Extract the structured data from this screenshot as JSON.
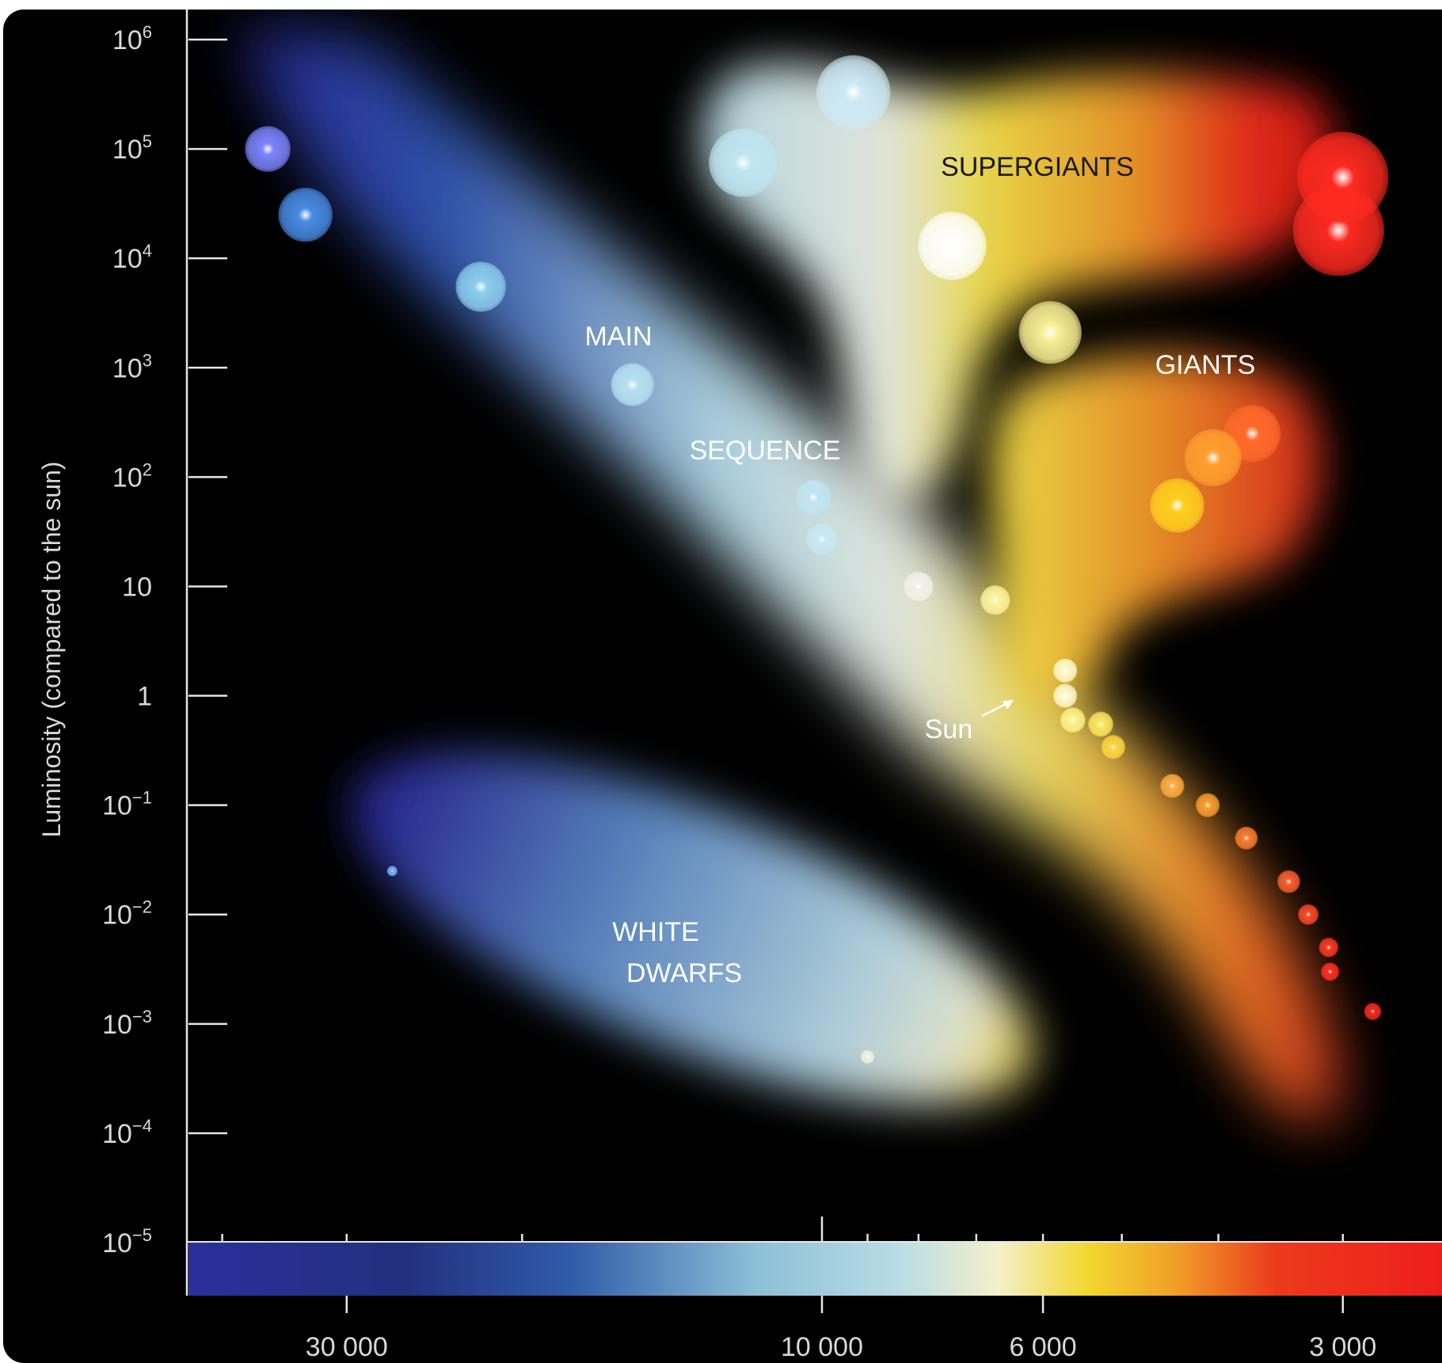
{
  "chart_data": {
    "type": "scatter",
    "title": "",
    "ylabel": "Luminosity (compared to the sun)",
    "xlabel": "",
    "y_scale": "log",
    "x_scale": "log",
    "x_reversed": true,
    "ylim": [
      1e-05,
      1000000
    ],
    "xlim": [
      2000,
      50000
    ],
    "y_ticks": [
      {
        "value": 1000000,
        "base": "10",
        "exp": "6"
      },
      {
        "value": 100000,
        "base": "10",
        "exp": "5"
      },
      {
        "value": 10000,
        "base": "10",
        "exp": "4"
      },
      {
        "value": 1000,
        "base": "10",
        "exp": "3"
      },
      {
        "value": 100,
        "base": "10",
        "exp": "2"
      },
      {
        "value": 10,
        "base": "10",
        "exp": ""
      },
      {
        "value": 1,
        "base": "1",
        "exp": ""
      },
      {
        "value": 0.1,
        "base": "10",
        "exp": "−1"
      },
      {
        "value": 0.01,
        "base": "10",
        "exp": "−2"
      },
      {
        "value": 0.001,
        "base": "10",
        "exp": "−3"
      },
      {
        "value": 0.0001,
        "base": "10",
        "exp": "−4"
      },
      {
        "value": 1e-05,
        "base": "10",
        "exp": "−5"
      }
    ],
    "x_ticks_labeled": [
      {
        "value": 30000,
        "label": "30 000"
      },
      {
        "value": 10000,
        "label": "10 000"
      },
      {
        "value": 6000,
        "label": "6 000"
      },
      {
        "value": 3000,
        "label": "3 000"
      }
    ],
    "x_ticks_minor": [
      40000,
      20000,
      9000,
      8000,
      7000,
      5000,
      4000
    ],
    "region_labels": [
      {
        "text": "SUPERGIANTS",
        "color": "#1a1a1a"
      },
      {
        "text": "GIANTS",
        "color": "#ffffff"
      },
      {
        "text": "MAIN",
        "color": "#ffffff"
      },
      {
        "text": "SEQUENCE",
        "color": "#ffffff"
      },
      {
        "text": "WHITE",
        "color": "#ffffff"
      },
      {
        "text": "DWARFS",
        "color": "#ffffff"
      }
    ],
    "sun_label": "Sun",
    "series": [
      {
        "class": "supergiants",
        "points": [
          {
            "t": 36000,
            "l": 100000,
            "r": 0.8,
            "color": "#7f86ff"
          },
          {
            "t": 12000,
            "l": 75000,
            "r": 1.2,
            "color": "#bfe6f2"
          },
          {
            "t": 9300,
            "l": 330000,
            "r": 1.3,
            "color": "#cdeaf5"
          },
          {
            "t": 7400,
            "l": 13000,
            "r": 1.2,
            "color": "#ffffff"
          },
          {
            "t": 5900,
            "l": 2100,
            "r": 1.1,
            "color": "#fff59a"
          },
          {
            "t": 3030,
            "l": 18000,
            "r": 1.6,
            "color": "#ff2a20"
          },
          {
            "t": 3000,
            "l": 55000,
            "r": 1.6,
            "color": "#ff2a20"
          }
        ]
      },
      {
        "class": "giants",
        "points": [
          {
            "t": 3700,
            "l": 250,
            "r": 1.0,
            "color": "#ff6a2a"
          },
          {
            "t": 4050,
            "l": 150,
            "r": 1.0,
            "color": "#ffa030"
          },
          {
            "t": 4400,
            "l": 55,
            "r": 0.95,
            "color": "#ffd020"
          }
        ]
      },
      {
        "class": "main_sequence",
        "points": [
          {
            "t": 33000,
            "l": 25000,
            "r": 0.95,
            "color": "#4a8ee8"
          },
          {
            "t": 22000,
            "l": 5500,
            "r": 0.88,
            "color": "#8ed0ee"
          },
          {
            "t": 15500,
            "l": 700,
            "r": 0.75,
            "color": "#b8e2f2"
          },
          {
            "t": 10200,
            "l": 65,
            "r": 0.62,
            "color": "#c0e5f2"
          },
          {
            "t": 10000,
            "l": 27,
            "r": 0.55,
            "color": "#c8e8f2"
          },
          {
            "t": 8000,
            "l": 10,
            "r": 0.52,
            "color": "#f2f2ea"
          },
          {
            "t": 6700,
            "l": 7.5,
            "r": 0.52,
            "color": "#fff5a0"
          },
          {
            "t": 5700,
            "l": 1.7,
            "r": 0.42,
            "color": "#fffbd0"
          },
          {
            "t": 5700,
            "l": 1.0,
            "r": 0.42,
            "color": "#fffbd0"
          },
          {
            "t": 5600,
            "l": 0.6,
            "r": 0.44,
            "color": "#fff38a"
          },
          {
            "t": 5250,
            "l": 0.55,
            "r": 0.44,
            "color": "#ffe860"
          },
          {
            "t": 5100,
            "l": 0.34,
            "r": 0.42,
            "color": "#ffd840"
          },
          {
            "t": 4450,
            "l": 0.15,
            "r": 0.42,
            "color": "#ffb040"
          },
          {
            "t": 4100,
            "l": 0.1,
            "r": 0.42,
            "color": "#ffa030"
          },
          {
            "t": 3750,
            "l": 0.05,
            "r": 0.4,
            "color": "#ff8030"
          },
          {
            "t": 3400,
            "l": 0.02,
            "r": 0.4,
            "color": "#ff6030"
          },
          {
            "t": 3250,
            "l": 0.01,
            "r": 0.36,
            "color": "#ff4a28"
          },
          {
            "t": 3100,
            "l": 0.005,
            "r": 0.34,
            "color": "#ff3a22"
          },
          {
            "t": 3090,
            "l": 0.003,
            "r": 0.32,
            "color": "#ff3020"
          },
          {
            "t": 2800,
            "l": 0.0013,
            "r": 0.3,
            "color": "#ff2a20"
          }
        ]
      },
      {
        "class": "white_dwarfs",
        "points": [
          {
            "t": 27000,
            "l": 0.025,
            "r": 0.18,
            "color": "#7ab0ff"
          },
          {
            "t": 9000,
            "l": 0.0005,
            "r": 0.24,
            "color": "#f0f0e0"
          }
        ]
      }
    ],
    "color_bar": {
      "stops": [
        "#2a2f9c",
        "#234aa8",
        "#3a78b8",
        "#a8d4e6",
        "#f2f0d8",
        "#f0d830",
        "#f08a2a",
        "#ee2a1a",
        "#ee1c1c"
      ]
    }
  }
}
